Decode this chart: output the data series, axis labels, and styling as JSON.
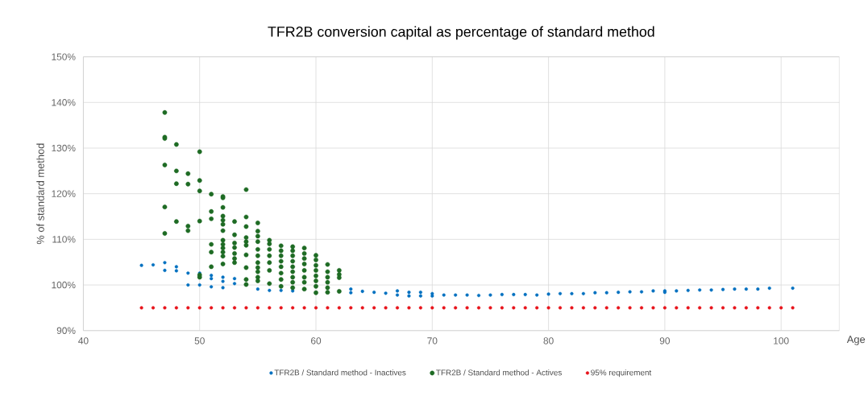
{
  "chart_data": {
    "type": "scatter",
    "title": "TFR2B conversion capital as percentage of standard method",
    "xlabel": "Age",
    "ylabel": "% of standard method",
    "xlim": [
      40,
      105
    ],
    "ylim": [
      90,
      150
    ],
    "xticks": [
      40,
      50,
      60,
      70,
      80,
      90,
      100
    ],
    "yticks": [
      {
        "value": 90,
        "label": "90%"
      },
      {
        "value": 100,
        "label": "100%"
      },
      {
        "value": 110,
        "label": "110%"
      },
      {
        "value": 120,
        "label": "120%"
      },
      {
        "value": 130,
        "label": "130%"
      },
      {
        "value": 140,
        "label": "140%"
      },
      {
        "value": 150,
        "label": "150%"
      }
    ],
    "grid": true,
    "legend": "bottom",
    "marker": "circle",
    "series": [
      {
        "name": "TFR2B / Standard method - Inactives",
        "color": "#0070c0",
        "x": [
          45,
          46,
          47,
          47,
          48,
          48,
          49,
          49,
          50,
          50,
          50,
          51,
          51,
          51,
          52,
          52,
          52,
          53,
          53,
          55,
          56,
          57,
          58,
          63,
          63,
          64,
          65,
          66,
          67,
          67,
          68,
          68,
          69,
          69,
          70,
          70,
          71,
          72,
          73,
          74,
          75,
          76,
          77,
          78,
          79,
          80,
          81,
          82,
          83,
          84,
          85,
          86,
          87,
          88,
          89,
          90,
          90,
          91,
          92,
          93,
          94,
          95,
          96,
          97,
          98,
          99,
          101
        ],
        "values": [
          104.3,
          104.4,
          104.9,
          103.2,
          104.0,
          103.1,
          102.6,
          100.0,
          102.6,
          101.9,
          100.0,
          102.1,
          101.4,
          99.6,
          101.7,
          100.8,
          99.4,
          101.4,
          100.3,
          99.1,
          98.8,
          98.8,
          98.7,
          99.1,
          98.3,
          98.6,
          98.4,
          98.2,
          98.7,
          97.8,
          98.4,
          97.6,
          98.4,
          97.6,
          98.1,
          97.6,
          97.8,
          97.8,
          97.8,
          97.7,
          97.8,
          97.9,
          97.9,
          97.9,
          97.8,
          98.0,
          98.1,
          98.1,
          98.1,
          98.3,
          98.3,
          98.4,
          98.5,
          98.5,
          98.7,
          98.7,
          98.4,
          98.7,
          98.8,
          98.9,
          98.9,
          99.0,
          99.1,
          99.1,
          99.1,
          99.3,
          99.3
        ]
      },
      {
        "name": "TFR2B / Standard method - Actives",
        "color": "#1e6b24",
        "x": [
          47,
          47,
          47,
          47,
          47,
          47,
          48,
          48,
          48,
          48,
          49,
          49,
          49,
          49,
          50,
          50,
          50,
          50,
          50,
          50,
          51,
          51,
          51,
          51,
          51,
          51,
          52,
          52,
          52,
          52,
          52,
          52,
          52,
          52,
          52,
          52,
          52,
          52,
          52,
          53,
          53,
          53,
          53,
          53,
          53,
          53,
          54,
          54,
          54,
          54,
          54,
          54,
          54,
          54,
          54,
          54,
          55,
          55,
          55,
          55,
          55,
          55,
          55,
          55,
          55,
          55,
          55,
          56,
          56,
          56,
          56,
          56,
          56,
          56,
          57,
          57,
          57,
          57,
          57,
          57,
          57,
          57,
          58,
          58,
          58,
          58,
          58,
          58,
          58,
          58,
          58,
          59,
          59,
          59,
          59,
          59,
          59,
          59,
          59,
          60,
          60,
          60,
          60,
          60,
          60,
          60,
          60,
          61,
          61,
          61,
          61,
          61,
          61,
          62,
          62,
          62,
          62
        ],
        "values": [
          137.8,
          132.4,
          132.1,
          126.3,
          117.1,
          111.3,
          130.8,
          125.0,
          122.2,
          113.9,
          124.4,
          122.1,
          112.9,
          111.9,
          129.2,
          122.9,
          120.6,
          114.0,
          102.2,
          101.7,
          119.9,
          116.1,
          114.5,
          108.9,
          107.2,
          104.0,
          119.4,
          119.1,
          117.0,
          115.1,
          114.2,
          113.3,
          111.9,
          109.8,
          108.9,
          108.1,
          107.2,
          106.3,
          104.6,
          113.9,
          111.0,
          109.2,
          108.2,
          106.9,
          105.8,
          104.9,
          120.9,
          114.9,
          112.8,
          110.4,
          109.5,
          108.7,
          106.6,
          103.8,
          101.2,
          100.1,
          113.6,
          111.8,
          110.7,
          109.5,
          107.8,
          106.4,
          104.9,
          103.8,
          102.9,
          101.7,
          100.9,
          109.8,
          109.0,
          107.8,
          106.4,
          104.9,
          103.2,
          100.3,
          108.6,
          107.5,
          106.4,
          105.2,
          104.0,
          102.6,
          101.2,
          99.7,
          108.4,
          107.5,
          106.4,
          105.2,
          104.0,
          102.9,
          101.7,
          100.6,
          99.4,
          108.1,
          106.9,
          105.8,
          104.6,
          103.2,
          101.7,
          100.6,
          99.1,
          106.5,
          105.5,
          104.3,
          103.2,
          102.0,
          100.9,
          99.7,
          98.3,
          104.5,
          102.9,
          101.7,
          100.6,
          99.4,
          98.4,
          103.2,
          102.3,
          101.6,
          98.6
        ]
      },
      {
        "name": "95% requirement",
        "color": "#e8141b",
        "x": [
          45,
          46,
          47,
          48,
          49,
          50,
          51,
          52,
          53,
          54,
          55,
          56,
          57,
          58,
          59,
          60,
          61,
          62,
          63,
          64,
          65,
          66,
          67,
          68,
          69,
          70,
          71,
          72,
          73,
          74,
          75,
          76,
          77,
          78,
          79,
          80,
          81,
          82,
          83,
          84,
          85,
          86,
          87,
          88,
          89,
          90,
          91,
          92,
          93,
          94,
          95,
          96,
          97,
          98,
          99,
          100,
          101
        ],
        "values": [
          95,
          95,
          95,
          95,
          95,
          95,
          95,
          95,
          95,
          95,
          95,
          95,
          95,
          95,
          95,
          95,
          95,
          95,
          95,
          95,
          95,
          95,
          95,
          95,
          95,
          95,
          95,
          95,
          95,
          95,
          95,
          95,
          95,
          95,
          95,
          95,
          95,
          95,
          95,
          95,
          95,
          95,
          95,
          95,
          95,
          95,
          95,
          95,
          95,
          95,
          95,
          95,
          95,
          95,
          95,
          95,
          95
        ]
      }
    ]
  }
}
